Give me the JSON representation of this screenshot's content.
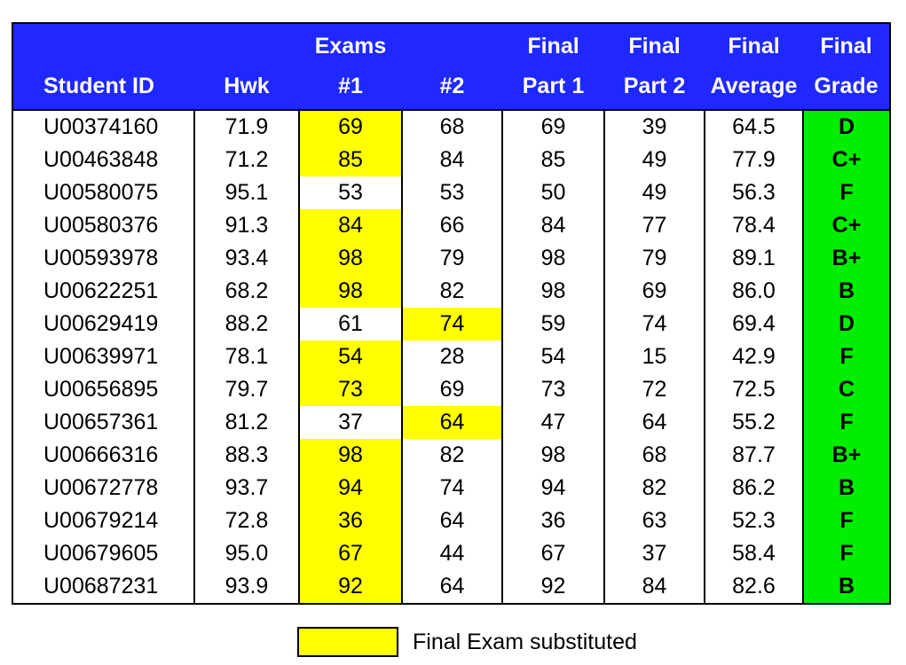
{
  "header": {
    "row1": [
      "",
      "",
      "Exams",
      "",
      "Final",
      "Final",
      "Final",
      "Final"
    ],
    "row2": [
      "Student ID",
      "Hwk",
      "#1",
      "#2",
      "Part 1",
      "Part 2",
      "Average",
      "Grade"
    ]
  },
  "colors": {
    "header_bg": "#1f28ff",
    "substituted": "#ffff00",
    "grade_bg": "#00ee00"
  },
  "rows": [
    {
      "id": "U00374160",
      "hwk": "71.9",
      "e1": "69",
      "e2": "68",
      "p1": "69",
      "p2": "39",
      "avg": "64.5",
      "grade": "D",
      "sub": "e1"
    },
    {
      "id": "U00463848",
      "hwk": "71.2",
      "e1": "85",
      "e2": "84",
      "p1": "85",
      "p2": "49",
      "avg": "77.9",
      "grade": "C+",
      "sub": "e1"
    },
    {
      "id": "U00580075",
      "hwk": "95.1",
      "e1": "53",
      "e2": "53",
      "p1": "50",
      "p2": "49",
      "avg": "56.3",
      "grade": "F",
      "sub": ""
    },
    {
      "id": "U00580376",
      "hwk": "91.3",
      "e1": "84",
      "e2": "66",
      "p1": "84",
      "p2": "77",
      "avg": "78.4",
      "grade": "C+",
      "sub": "e1"
    },
    {
      "id": "U00593978",
      "hwk": "93.4",
      "e1": "98",
      "e2": "79",
      "p1": "98",
      "p2": "79",
      "avg": "89.1",
      "grade": "B+",
      "sub": "e1"
    },
    {
      "id": "U00622251",
      "hwk": "68.2",
      "e1": "98",
      "e2": "82",
      "p1": "98",
      "p2": "69",
      "avg": "86.0",
      "grade": "B",
      "sub": "e1"
    },
    {
      "id": "U00629419",
      "hwk": "88.2",
      "e1": "61",
      "e2": "74",
      "p1": "59",
      "p2": "74",
      "avg": "69.4",
      "grade": "D",
      "sub": "e2"
    },
    {
      "id": "U00639971",
      "hwk": "78.1",
      "e1": "54",
      "e2": "28",
      "p1": "54",
      "p2": "15",
      "avg": "42.9",
      "grade": "F",
      "sub": "e1"
    },
    {
      "id": "U00656895",
      "hwk": "79.7",
      "e1": "73",
      "e2": "69",
      "p1": "73",
      "p2": "72",
      "avg": "72.5",
      "grade": "C",
      "sub": "e1"
    },
    {
      "id": "U00657361",
      "hwk": "81.2",
      "e1": "37",
      "e2": "64",
      "p1": "47",
      "p2": "64",
      "avg": "55.2",
      "grade": "F",
      "sub": "e2"
    },
    {
      "id": "U00666316",
      "hwk": "88.3",
      "e1": "98",
      "e2": "82",
      "p1": "98",
      "p2": "68",
      "avg": "87.7",
      "grade": "B+",
      "sub": "e1"
    },
    {
      "id": "U00672778",
      "hwk": "93.7",
      "e1": "94",
      "e2": "74",
      "p1": "94",
      "p2": "82",
      "avg": "86.2",
      "grade": "B",
      "sub": "e1"
    },
    {
      "id": "U00679214",
      "hwk": "72.8",
      "e1": "36",
      "e2": "64",
      "p1": "36",
      "p2": "63",
      "avg": "52.3",
      "grade": "F",
      "sub": "e1"
    },
    {
      "id": "U00679605",
      "hwk": "95.0",
      "e1": "67",
      "e2": "44",
      "p1": "67",
      "p2": "37",
      "avg": "58.4",
      "grade": "F",
      "sub": "e1"
    },
    {
      "id": "U00687231",
      "hwk": "93.9",
      "e1": "92",
      "e2": "64",
      "p1": "92",
      "p2": "84",
      "avg": "82.6",
      "grade": "B",
      "sub": "e1"
    }
  ],
  "legend": {
    "label": "Final Exam substituted"
  }
}
